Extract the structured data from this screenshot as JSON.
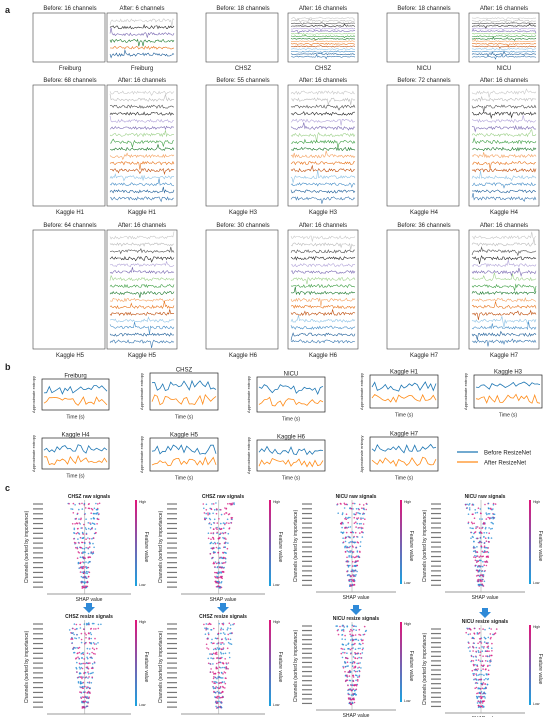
{
  "panel_letters": [
    "a",
    "b",
    "c"
  ],
  "colors": {
    "sig": [
      "#c9c9c9",
      "#bdbdbd",
      "#555555",
      "#2b2b2b",
      "#b3a5d9",
      "#7c6bb3",
      "#9fd18c",
      "#3f9f45",
      "#1e7a2e",
      "#f4a261",
      "#e8731a",
      "#bf4e0c",
      "#8fc3e6",
      "#4a90c8",
      "#1f5f99",
      "#3a78b0"
    ],
    "before": "#1f77b4",
    "after": "#ff8c1a"
  },
  "panel_a": {
    "groups": [
      {
        "before_title": "Before: 16 channels",
        "after_title": "After: 6 channels",
        "name": "Freiburg",
        "after_n": 6
      },
      {
        "before_title": "Before: 18 channels",
        "after_title": "After: 16 channels",
        "name": "CHSZ",
        "after_n": 16
      },
      {
        "before_title": "Before: 18 channels",
        "after_title": "After: 16 channels",
        "name": "NICU",
        "after_n": 16
      },
      {
        "before_title": "Before: 68 channels",
        "after_title": "After: 16 channels",
        "name": "Kaggle H1",
        "after_n": 16
      },
      {
        "before_title": "Before: 55 channels",
        "after_title": "After: 16 channels",
        "name": "Kaggle H3",
        "after_n": 16
      },
      {
        "before_title": "Before: 72 channels",
        "after_title": "After: 16 channels",
        "name": "Kaggle H4",
        "after_n": 16
      },
      {
        "before_title": "Before: 64 channels",
        "after_title": "After: 16 channels",
        "name": "Kaggle H5",
        "after_n": 16
      },
      {
        "before_title": "Before: 30 channels",
        "after_title": "After: 16 channels",
        "name": "Kaggle H6",
        "after_n": 16
      },
      {
        "before_title": "Before: 36 channels",
        "after_title": "After: 16 channels",
        "name": "Kaggle H7",
        "after_n": 16
      }
    ]
  },
  "panel_b": {
    "xlabel": "Time (s)",
    "ylabel": "Approximate entropy",
    "legend": [
      "Before ResizeNet",
      "After ResizeNet"
    ],
    "charts": [
      {
        "title": "Freiburg"
      },
      {
        "title": "CHSZ"
      },
      {
        "title": "NICU"
      },
      {
        "title": "Kaggle H1"
      },
      {
        "title": "Kaggle H3"
      },
      {
        "title": "Kaggle H4"
      },
      {
        "title": "Kaggle H5"
      },
      {
        "title": "Kaggle H6"
      },
      {
        "title": "Kaggle H7"
      }
    ]
  },
  "panel_c": {
    "ylabel": "Channels (sorted by importance)",
    "xlabel": "SHAP value",
    "cbar_label": "Feature value",
    "cbar_high": "High",
    "cbar_low": "Low",
    "plots": [
      {
        "title": "CHSZ raw signals"
      },
      {
        "title": "CHSZ raw signals"
      },
      {
        "title": "NICU raw signals"
      },
      {
        "title": "NICU raw signals"
      },
      {
        "title": "CHSZ resize signals"
      },
      {
        "title": "CHSZ resize signals"
      },
      {
        "title": "NICU resize signals"
      },
      {
        "title": "NICU resize signals"
      }
    ]
  }
}
